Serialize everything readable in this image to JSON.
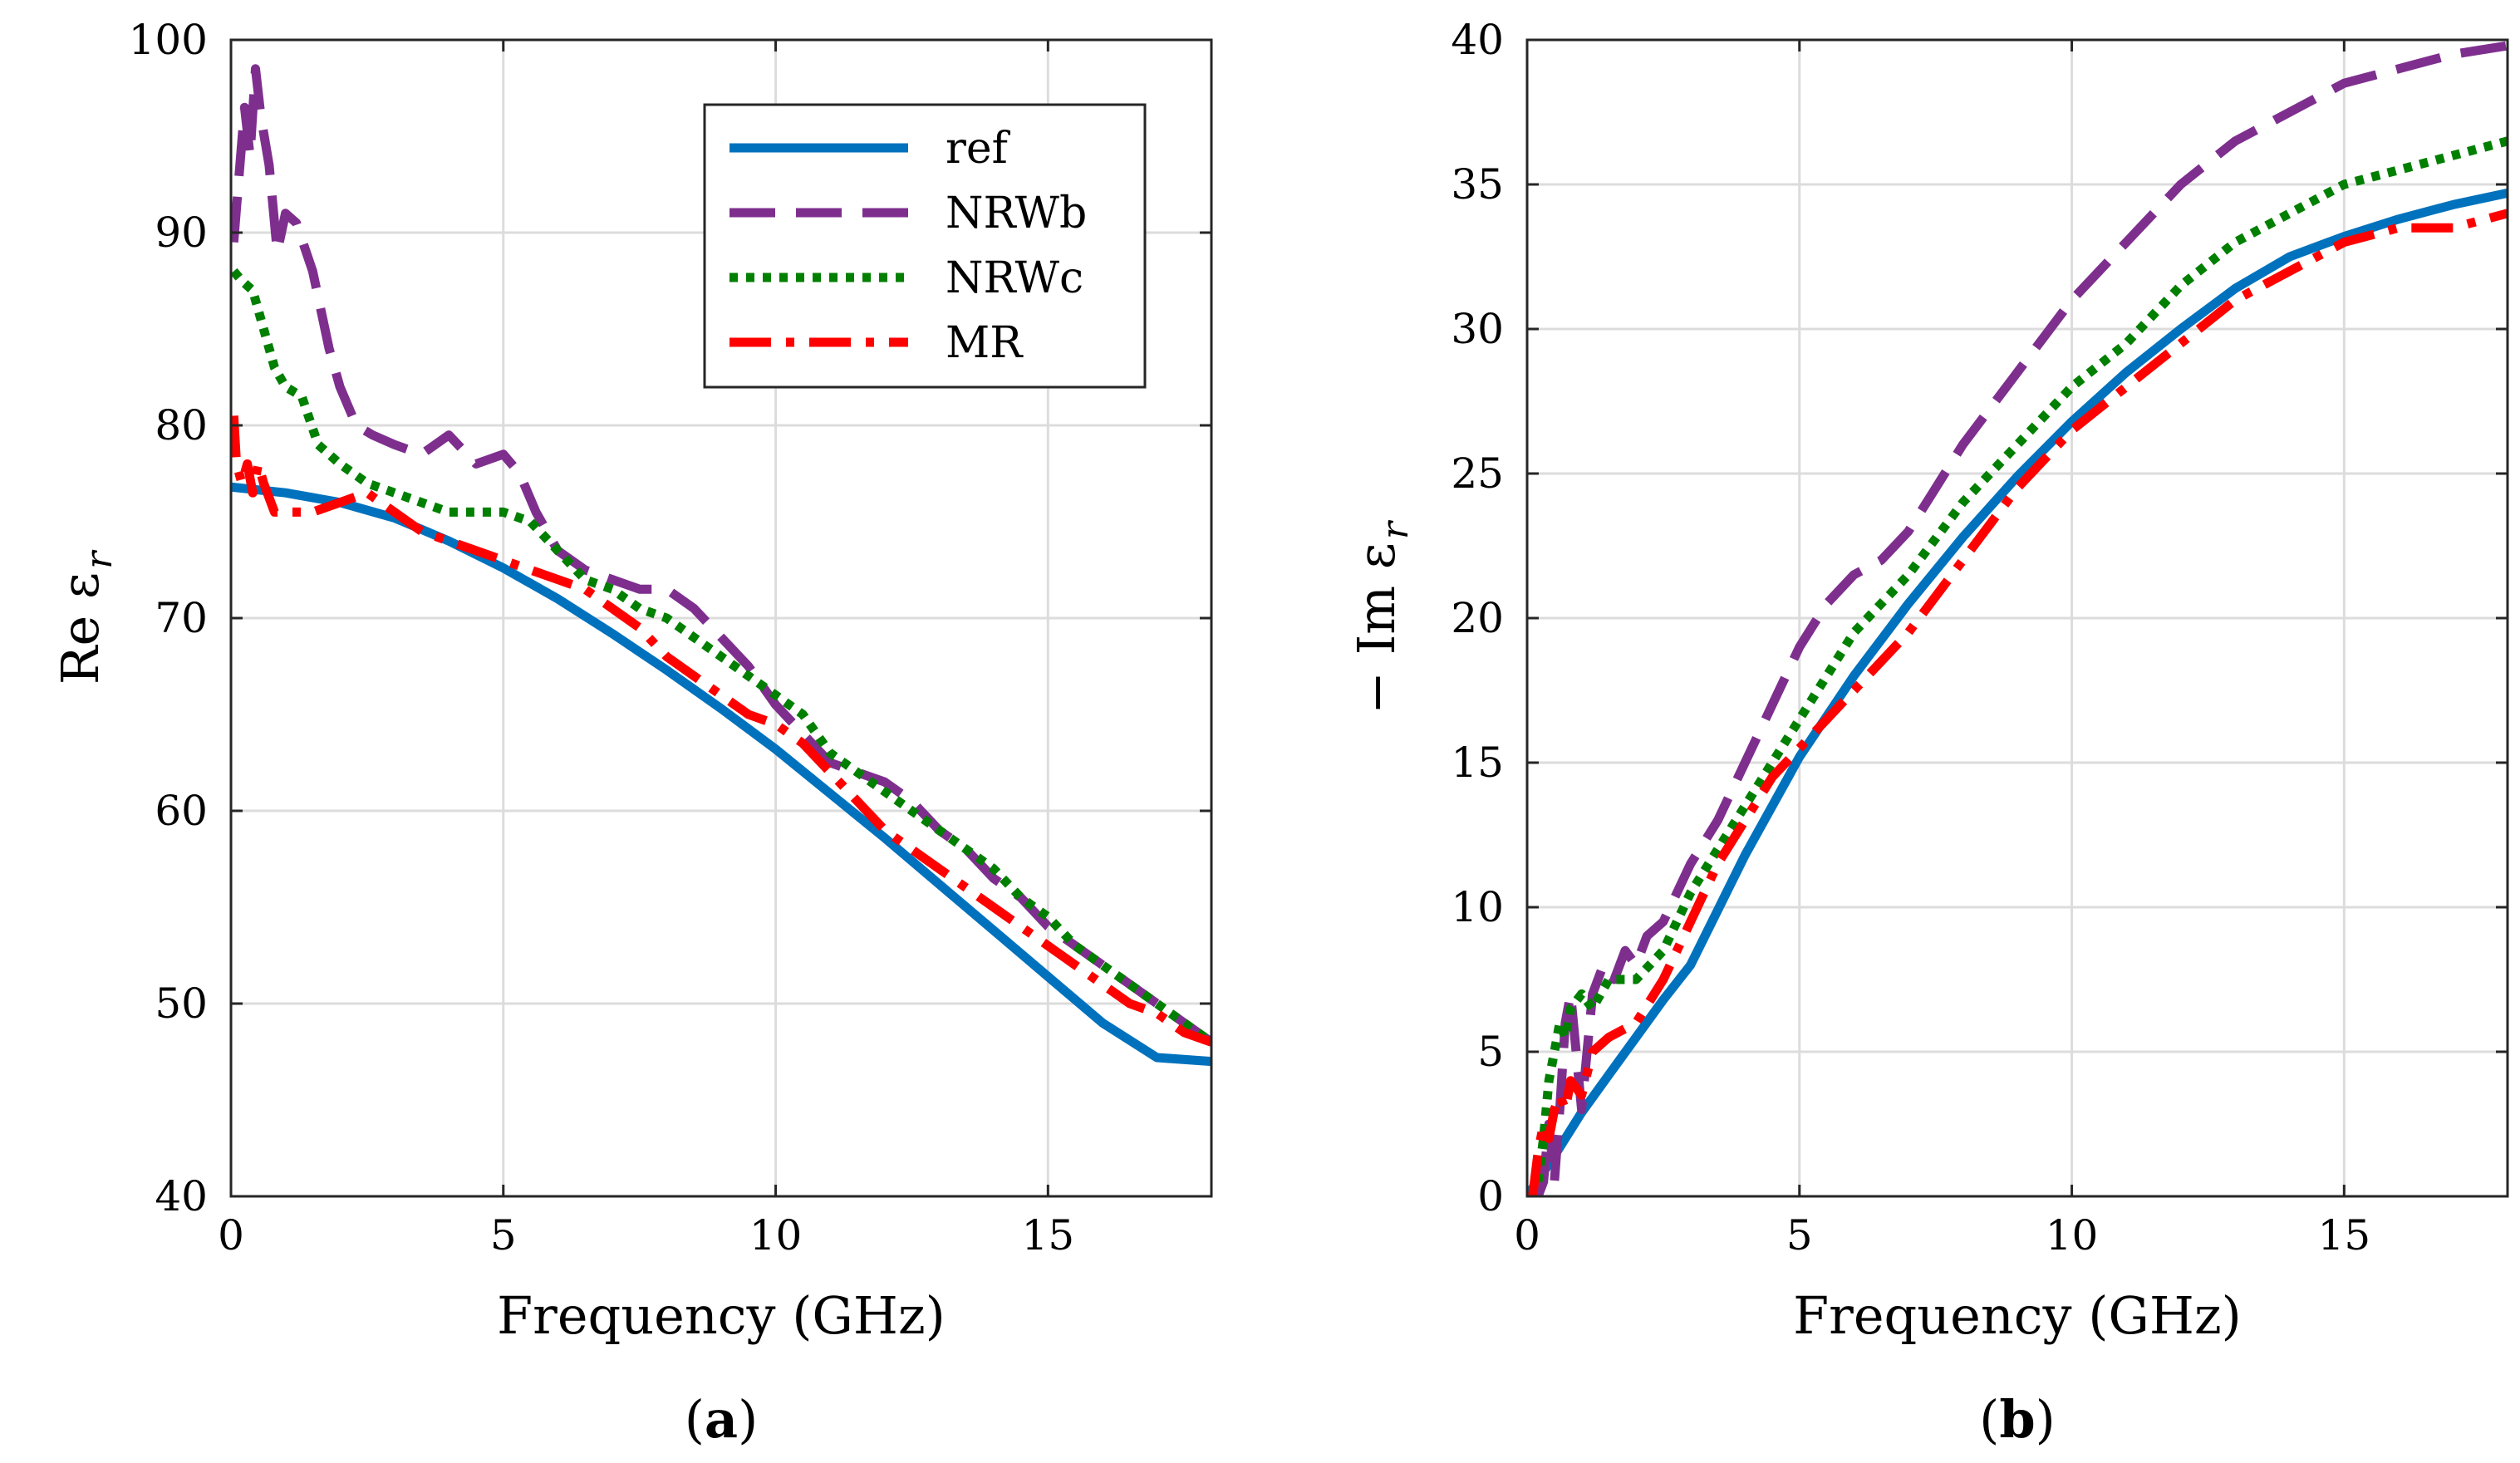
{
  "chart_data": [
    {
      "type": "line",
      "panel_label": "(a)",
      "panel_letter": "a",
      "xlabel": "Frequency (GHz)",
      "ylabel": "Re ε",
      "ylabel_subscript": "r",
      "xlim": [
        0,
        18
      ],
      "ylim": [
        40,
        100
      ],
      "xticks": [
        0,
        5,
        10,
        15
      ],
      "yticks": [
        40,
        50,
        60,
        70,
        80,
        90,
        100
      ],
      "grid": true,
      "legend": {
        "position": "top-right",
        "entries": [
          "ref",
          "NRWb",
          "NRWc",
          "MR"
        ]
      },
      "series": [
        {
          "name": "ref",
          "color": "#0072BD",
          "style": "solid",
          "x": [
            0,
            1,
            2,
            3,
            4,
            5,
            6,
            7,
            8,
            9,
            10,
            11,
            12,
            13,
            14,
            15,
            16,
            17,
            18
          ],
          "y": [
            76.8,
            76.5,
            76.0,
            75.2,
            74.0,
            72.6,
            71.0,
            69.2,
            67.3,
            65.3,
            63.2,
            60.9,
            58.6,
            56.2,
            53.8,
            51.4,
            49.0,
            47.2,
            47.0
          ]
        },
        {
          "name": "NRWb",
          "color": "#7E2F8E",
          "style": "dashed",
          "x": [
            0.05,
            0.15,
            0.25,
            0.35,
            0.45,
            0.55,
            0.7,
            0.85,
            1.0,
            1.2,
            1.5,
            1.8,
            2.0,
            2.3,
            2.6,
            3.0,
            3.5,
            4.0,
            4.5,
            5.0,
            5.3,
            5.6,
            6.0,
            6.5,
            7.0,
            7.5,
            8.0,
            8.5,
            9.0,
            9.5,
            10.0,
            10.5,
            11.0,
            11.5,
            12.0,
            12.5,
            13.0,
            13.5,
            14.0,
            14.5,
            15.0,
            15.5,
            16.0,
            16.5,
            17.0,
            17.5,
            18.0
          ],
          "y": [
            89.5,
            93.0,
            96.5,
            94.0,
            98.5,
            96.0,
            93.5,
            89.0,
            91.0,
            90.5,
            88.0,
            84.0,
            82.0,
            80.0,
            79.5,
            79.0,
            78.5,
            79.5,
            78.0,
            78.5,
            77.5,
            75.5,
            73.5,
            72.5,
            72.0,
            71.5,
            71.5,
            70.5,
            69.0,
            67.5,
            65.5,
            64.0,
            62.5,
            62.0,
            61.5,
            60.5,
            59.0,
            58.0,
            56.5,
            55.5,
            54.0,
            53.0,
            52.0,
            51.0,
            50.0,
            49.0,
            48.0
          ]
        },
        {
          "name": "NRWc",
          "color": "#007F00",
          "style": "dotted",
          "x": [
            0.05,
            0.2,
            0.4,
            0.6,
            0.8,
            1.0,
            1.3,
            1.6,
            2.0,
            2.5,
            3.0,
            3.5,
            4.0,
            4.5,
            5.0,
            5.5,
            6.0,
            6.5,
            7.0,
            7.5,
            8.0,
            8.5,
            9.0,
            9.5,
            10.0,
            10.5,
            11.0,
            11.5,
            12.0,
            12.5,
            13.0,
            13.5,
            14.0,
            14.5,
            15.0,
            15.5,
            16.0,
            16.5,
            17.0,
            17.5,
            18.0
          ],
          "y": [
            88.0,
            87.5,
            87.0,
            85.0,
            83.0,
            82.0,
            81.5,
            79.0,
            78.0,
            77.0,
            76.5,
            76.0,
            75.5,
            75.5,
            75.5,
            75.0,
            73.5,
            72.0,
            71.5,
            70.5,
            70.0,
            69.0,
            68.0,
            67.0,
            66.0,
            65.0,
            63.0,
            62.0,
            61.0,
            60.0,
            59.0,
            58.0,
            57.0,
            55.5,
            54.5,
            53.0,
            52.0,
            51.0,
            50.0,
            49.0,
            48.0
          ]
        },
        {
          "name": "MR",
          "color": "#FF0000",
          "style": "dashdot",
          "x": [
            0.05,
            0.1,
            0.2,
            0.3,
            0.4,
            0.5,
            0.6,
            0.8,
            1.0,
            1.5,
            2.0,
            2.5,
            3.0,
            3.5,
            4.0,
            4.5,
            5.0,
            5.5,
            6.0,
            6.5,
            7.0,
            7.5,
            8.0,
            8.5,
            9.0,
            9.5,
            10.0,
            10.5,
            11.0,
            11.5,
            12.0,
            12.5,
            13.0,
            13.5,
            14.0,
            14.5,
            15.0,
            15.5,
            16.0,
            16.5,
            17.0,
            17.5,
            18.0
          ],
          "y": [
            80.5,
            78.0,
            77.0,
            78.0,
            76.5,
            78.0,
            77.0,
            75.5,
            75.5,
            75.5,
            76.0,
            76.5,
            75.5,
            74.5,
            74.0,
            73.5,
            73.0,
            72.5,
            72.0,
            71.5,
            70.5,
            69.5,
            68.0,
            67.0,
            66.0,
            65.0,
            64.5,
            63.5,
            62.0,
            60.5,
            59.0,
            58.0,
            57.0,
            56.0,
            55.0,
            54.0,
            53.0,
            52.0,
            51.0,
            50.0,
            49.5,
            48.5,
            48.0
          ]
        }
      ]
    },
    {
      "type": "line",
      "panel_label": "(b)",
      "panel_letter": "b",
      "xlabel": "Frequency (GHz)",
      "ylabel": "− Im ε",
      "ylabel_subscript": "r",
      "xlim": [
        0,
        18
      ],
      "ylim": [
        0,
        40
      ],
      "xticks": [
        0,
        5,
        10,
        15
      ],
      "yticks": [
        0,
        5,
        10,
        15,
        20,
        25,
        30,
        35,
        40
      ],
      "grid": true,
      "series": [
        {
          "name": "ref",
          "color": "#0072BD",
          "style": "solid",
          "x": [
            0,
            0.5,
            1,
            1.5,
            2,
            2.5,
            3,
            4,
            5,
            6,
            7,
            8,
            9,
            10,
            11,
            12,
            13,
            14,
            15,
            16,
            17,
            18
          ],
          "y": [
            0,
            1.4,
            2.9,
            4.2,
            5.5,
            6.8,
            8.0,
            11.8,
            15.2,
            18.0,
            20.5,
            22.8,
            24.9,
            26.8,
            28.5,
            30.0,
            31.4,
            32.5,
            33.2,
            33.8,
            34.3,
            34.7
          ]
        },
        {
          "name": "NRWb",
          "color": "#7E2F8E",
          "style": "dashed",
          "x": [
            0.2,
            0.3,
            0.4,
            0.5,
            0.6,
            0.7,
            0.8,
            1.0,
            1.2,
            1.4,
            1.6,
            1.8,
            2.0,
            2.2,
            2.5,
            3.0,
            3.5,
            4.0,
            4.5,
            5.0,
            5.5,
            6.0,
            6.5,
            7.0,
            7.5,
            8.0,
            9.0,
            10.0,
            11.0,
            12.0,
            13.0,
            14.0,
            15.0,
            16.0,
            17.0,
            18.0
          ],
          "y": [
            0,
            0.5,
            2.5,
            0.5,
            3.0,
            6.0,
            7.0,
            3.0,
            7.0,
            8.0,
            7.5,
            8.5,
            8.0,
            9.0,
            9.5,
            11.5,
            13.0,
            15.0,
            17.0,
            19.0,
            20.5,
            21.5,
            22.0,
            23.0,
            24.5,
            26.0,
            28.5,
            31.0,
            33.0,
            35.0,
            36.5,
            37.5,
            38.5,
            39.0,
            39.5,
            39.8
          ]
        },
        {
          "name": "NRWc",
          "color": "#007F00",
          "style": "dotted",
          "x": [
            0.2,
            0.3,
            0.4,
            0.5,
            0.6,
            0.7,
            0.8,
            1.0,
            1.2,
            1.5,
            2.0,
            2.5,
            3.0,
            3.5,
            4.0,
            4.5,
            5.0,
            5.5,
            6.0,
            6.5,
            7.0,
            8.0,
            9.0,
            10.0,
            11.0,
            12.0,
            13.0,
            14.0,
            15.0,
            16.0,
            17.0,
            18.0
          ],
          "y": [
            0.5,
            2.0,
            4.0,
            5.0,
            6.0,
            5.5,
            6.5,
            7.0,
            6.5,
            7.5,
            7.5,
            8.5,
            10.5,
            12.0,
            13.5,
            15.0,
            16.5,
            18.0,
            19.5,
            20.5,
            21.5,
            24.0,
            26.0,
            28.0,
            29.5,
            31.5,
            33.0,
            34.0,
            35.0,
            35.5,
            36.0,
            36.5
          ]
        },
        {
          "name": "MR",
          "color": "#FF0000",
          "style": "dashdot",
          "x": [
            0.1,
            0.2,
            0.3,
            0.4,
            0.5,
            0.6,
            0.7,
            0.8,
            1.0,
            1.2,
            1.5,
            2.0,
            2.5,
            3.0,
            3.5,
            4.0,
            4.5,
            5.0,
            5.5,
            6.0,
            7.0,
            8.0,
            9.0,
            10.0,
            11.0,
            12.0,
            13.0,
            14.0,
            15.0,
            16.0,
            17.0,
            18.0
          ],
          "y": [
            0,
            1.5,
            2.5,
            2.0,
            3.0,
            3.5,
            3.0,
            4.0,
            3.5,
            5.0,
            5.5,
            6.0,
            7.5,
            9.5,
            11.5,
            13.0,
            14.5,
            15.5,
            16.5,
            17.5,
            19.5,
            22.0,
            24.5,
            26.5,
            28.0,
            29.5,
            31.0,
            32.0,
            33.0,
            33.5,
            33.5,
            34.0
          ]
        }
      ]
    }
  ]
}
